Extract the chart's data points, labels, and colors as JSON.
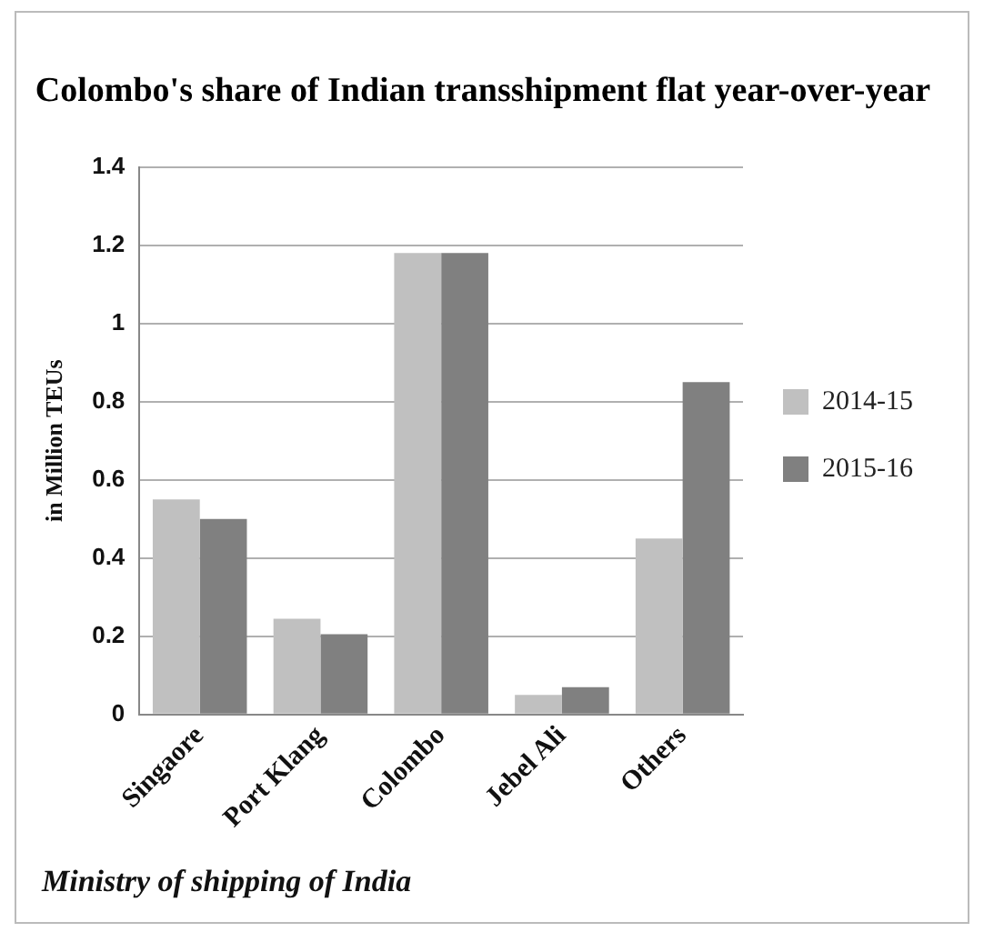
{
  "chart_data": {
    "type": "bar",
    "title": "Colombo's share of Indian transshipment flat year-over-year",
    "ylabel": "in Million TEUs",
    "categories": [
      "Singaore",
      "Port Klang",
      "Colombo",
      "Jebel Ali",
      "Others"
    ],
    "series": [
      {
        "name": "2014-15",
        "color": "#c0c0c0",
        "values": [
          0.55,
          0.245,
          1.18,
          0.05,
          0.45
        ]
      },
      {
        "name": "2015-16",
        "color": "#808080",
        "values": [
          0.5,
          0.205,
          1.18,
          0.07,
          0.85
        ]
      }
    ],
    "ylim": [
      0,
      1.4
    ],
    "yticks": [
      0,
      0.2,
      0.4,
      0.6,
      0.8,
      1,
      1.2,
      1.4
    ],
    "grid": "y",
    "legend": "right",
    "annotations": [
      "Ministry of shipping of India"
    ]
  }
}
